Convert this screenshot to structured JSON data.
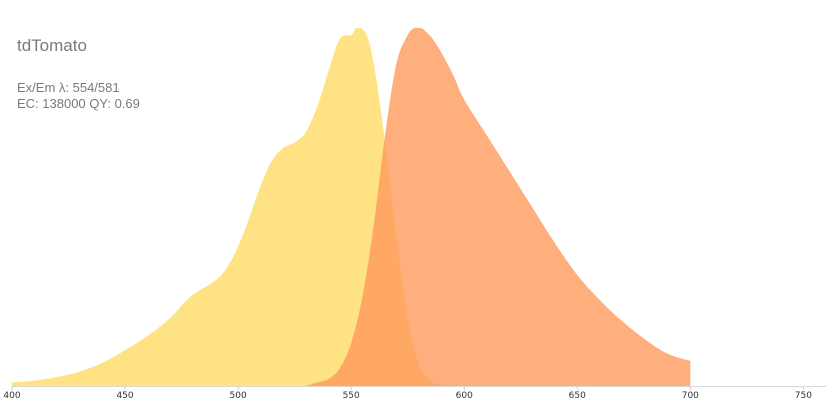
{
  "chart_data": {
    "type": "area",
    "title": "tdTomato",
    "annotations": [
      "Ex/Em λ: 554/581",
      "EC: 138000  QY: 0.69"
    ],
    "xlabel": "",
    "ylabel": "",
    "xlim": [
      400,
      760
    ],
    "ylim": [
      0,
      1
    ],
    "x_ticks": [
      "400",
      "450",
      "500",
      "550",
      "600",
      "650",
      "700",
      "750"
    ],
    "grid": false,
    "legend": "none",
    "series": [
      {
        "role": "excitation",
        "color": "#ffe07d",
        "x": [
          400,
          410,
          420,
          430,
          440,
          450,
          460,
          470,
          475,
          480,
          490,
          495,
          500,
          505,
          510,
          515,
          520,
          525,
          530,
          535,
          540,
          545,
          550,
          552,
          554,
          556,
          558,
          560,
          562,
          565,
          570,
          575,
          580,
          585,
          590,
          600
        ],
        "y": [
          0.01,
          0.015,
          0.025,
          0.04,
          0.065,
          0.1,
          0.14,
          0.19,
          0.225,
          0.255,
          0.295,
          0.33,
          0.39,
          0.47,
          0.56,
          0.63,
          0.665,
          0.68,
          0.71,
          0.78,
          0.88,
          0.97,
          0.98,
          1.0,
          1.0,
          0.99,
          0.96,
          0.9,
          0.82,
          0.68,
          0.42,
          0.19,
          0.06,
          0.015,
          0.004,
          0.0
        ]
      },
      {
        "role": "emission",
        "color": "#ff9a5c",
        "x": [
          530,
          535,
          540,
          545,
          550,
          555,
          560,
          565,
          570,
          575,
          578,
          581,
          583,
          586,
          590,
          595,
          600,
          610,
          620,
          630,
          640,
          650,
          660,
          670,
          680,
          690,
          700
        ],
        "y": [
          0.0,
          0.01,
          0.02,
          0.05,
          0.12,
          0.25,
          0.45,
          0.7,
          0.9,
          0.98,
          1.0,
          1.0,
          0.99,
          0.97,
          0.93,
          0.87,
          0.8,
          0.7,
          0.6,
          0.5,
          0.4,
          0.31,
          0.24,
          0.18,
          0.13,
          0.09,
          0.07
        ]
      }
    ]
  }
}
